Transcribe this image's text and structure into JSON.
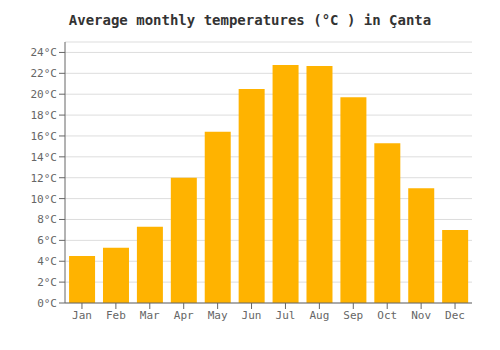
{
  "chart_data": {
    "type": "bar",
    "title": "Average monthly temperatures (°C ) in Çanta",
    "categories": [
      "Jan",
      "Feb",
      "Mar",
      "Apr",
      "May",
      "Jun",
      "Jul",
      "Aug",
      "Sep",
      "Oct",
      "Nov",
      "Dec"
    ],
    "values": [
      4.5,
      5.3,
      7.3,
      12.0,
      16.4,
      20.5,
      22.8,
      22.7,
      19.7,
      15.3,
      11.0,
      7.0
    ],
    "color": "#FFB300",
    "ylim": [
      0,
      25
    ],
    "yticks": [
      {
        "value": 0,
        "label": "0°C"
      },
      {
        "value": 2,
        "label": "2°C"
      },
      {
        "value": 4,
        "label": "4°C"
      },
      {
        "value": 6,
        "label": "6°C"
      },
      {
        "value": 8,
        "label": "8°C"
      },
      {
        "value": 10,
        "label": "10°C"
      },
      {
        "value": 12,
        "label": "12°C"
      },
      {
        "value": 14,
        "label": "14°C"
      },
      {
        "value": 16,
        "label": "16°C"
      },
      {
        "value": 18,
        "label": "18°C"
      },
      {
        "value": 20,
        "label": "20°C"
      },
      {
        "value": 22,
        "label": "22°C"
      },
      {
        "value": 24,
        "label": "24°C"
      }
    ],
    "grid": true
  }
}
